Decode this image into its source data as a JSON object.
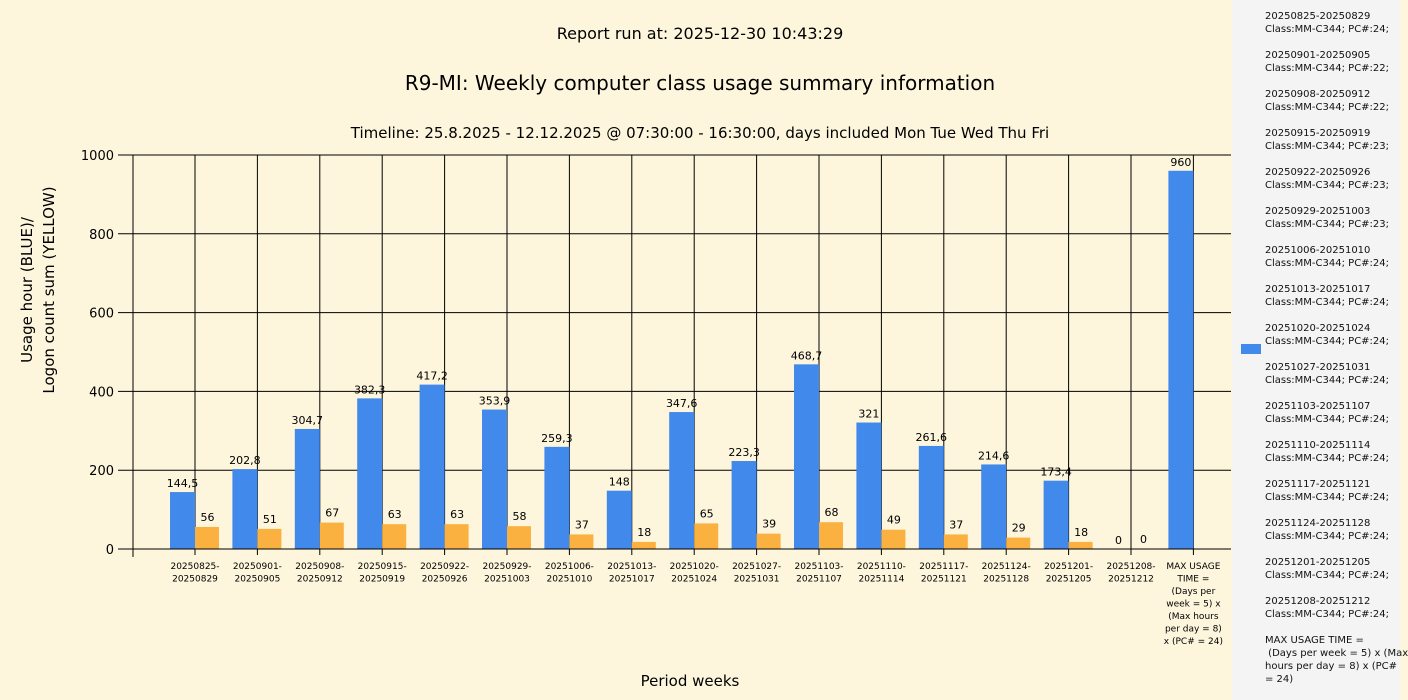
{
  "report_run": "Report run at: 2025-12-30 10:43:29",
  "chart_data": {
    "type": "bar",
    "title": "R9-MI: Weekly computer class usage summary information",
    "subtitle": "Timeline:  25.8.2025  - 12.12.2025  @  07:30:00 -  16:30:00, days included Mon Tue Wed Thu Fri",
    "xlabel": "Period weeks",
    "ylabel": [
      "Usage hour (BLUE)/",
      "Logon count sum (YELLOW)"
    ],
    "ylim": [
      0,
      1000
    ],
    "yticks": [
      "0",
      "200",
      "400",
      "600",
      "800",
      "1000"
    ],
    "grid": true,
    "categories": [
      [
        "20250825-",
        "20250829"
      ],
      [
        "20250901-",
        "20250905"
      ],
      [
        "20250908-",
        "20250912"
      ],
      [
        "20250915-",
        "20250919"
      ],
      [
        "20250922-",
        "20250926"
      ],
      [
        "20250929-",
        "20251003"
      ],
      [
        "20251006-",
        "20251010"
      ],
      [
        "20251013-",
        "20251017"
      ],
      [
        "20251020-",
        "20251024"
      ],
      [
        "20251027-",
        "20251031"
      ],
      [
        "20251103-",
        "20251107"
      ],
      [
        "20251110-",
        "20251114"
      ],
      [
        "20251117-",
        "20251121"
      ],
      [
        "20251124-",
        "20251128"
      ],
      [
        "20251201-",
        "20251205"
      ],
      [
        "20251208-",
        "20251212"
      ],
      [
        "MAX USAGE",
        "TIME =",
        "(Days per",
        "week = 5) x",
        "(Max hours",
        "per day = 8)",
        "x (PC# = 24)"
      ]
    ],
    "series": [
      {
        "name": "Usage hour",
        "color": "#4189ea",
        "values": [
          144.5,
          202.8,
          304.7,
          382.3,
          417.2,
          353.9,
          259.3,
          148,
          347.6,
          223.3,
          468.7,
          321,
          261.6,
          214.6,
          173.4,
          0,
          960
        ],
        "labels": [
          "144,5",
          "202,8",
          "304,7",
          "382,3",
          "417,2",
          "353,9",
          "259,3",
          "148",
          "347,6",
          "223,3",
          "468,7",
          "321",
          "261,6",
          "214,6",
          "173,4",
          "0",
          "960"
        ]
      },
      {
        "name": "Logon count sum",
        "color": "#fab13f",
        "values": [
          56,
          51,
          67,
          63,
          63,
          58,
          37,
          18,
          65,
          39,
          68,
          49,
          37,
          29,
          18,
          0,
          null
        ],
        "labels": [
          "56",
          "51",
          "67",
          "63",
          "63",
          "58",
          "37",
          "18",
          "65",
          "39",
          "68",
          "49",
          "37",
          "29",
          "18",
          "0",
          null
        ]
      }
    ],
    "legend": {
      "placement": "right",
      "entries": [
        [
          "20250825-20250829",
          "Class:MM-C344; PC#:24;"
        ],
        [
          "20250901-20250905",
          "Class:MM-C344; PC#:22;"
        ],
        [
          "20250908-20250912",
          "Class:MM-C344; PC#:22;"
        ],
        [
          "20250915-20250919",
          "Class:MM-C344; PC#:23;"
        ],
        [
          "20250922-20250926",
          "Class:MM-C344; PC#:23;"
        ],
        [
          "20250929-20251003",
          "Class:MM-C344; PC#:23;"
        ],
        [
          "20251006-20251010",
          "Class:MM-C344; PC#:24;"
        ],
        [
          "20251013-20251017",
          "Class:MM-C344; PC#:24;"
        ],
        [
          "20251020-20251024",
          "Class:MM-C344; PC#:24;"
        ],
        [
          "20251027-20251031",
          "Class:MM-C344; PC#:24;"
        ],
        [
          "20251103-20251107",
          "Class:MM-C344; PC#:24;"
        ],
        [
          "20251110-20251114",
          "Class:MM-C344; PC#:24;"
        ],
        [
          "20251117-20251121",
          "Class:MM-C344; PC#:24;"
        ],
        [
          "20251124-20251128",
          "Class:MM-C344; PC#:24;"
        ],
        [
          "20251201-20251205",
          "Class:MM-C344; PC#:24;"
        ],
        [
          "20251208-20251212",
          "Class:MM-C344; PC#:24;"
        ],
        [
          "MAX USAGE TIME =",
          " (Days per week = 5) x (Max",
          "hours per day = 8) x (PC#",
          "= 24)"
        ]
      ]
    }
  }
}
